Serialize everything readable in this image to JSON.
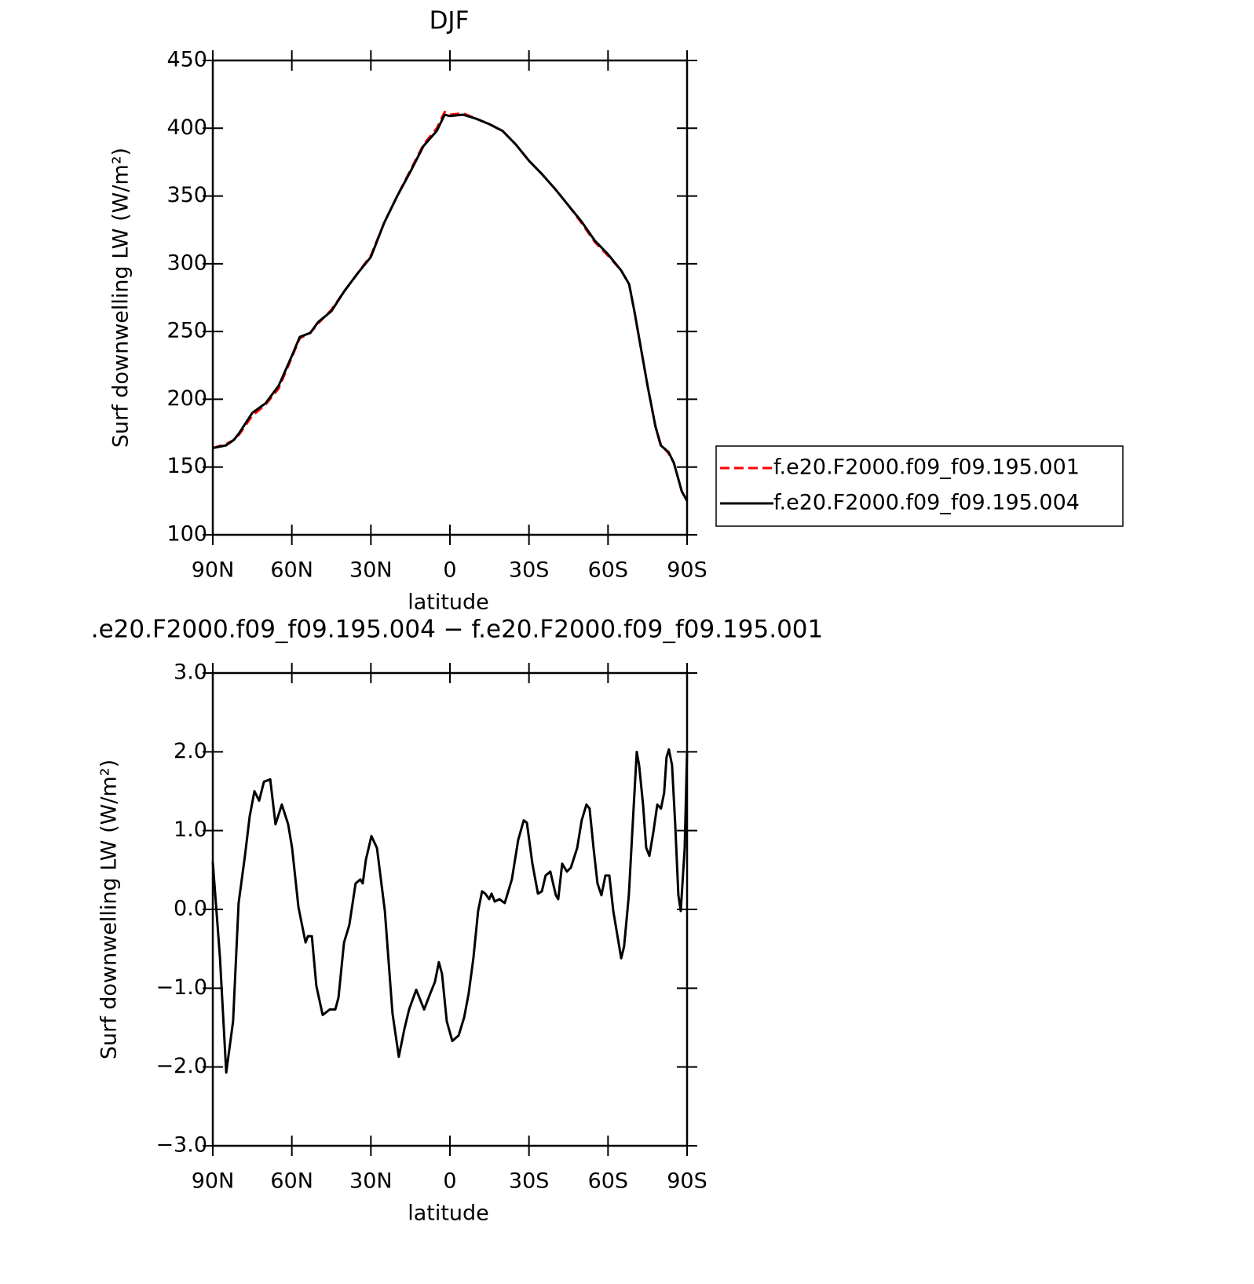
{
  "chart_data": [
    {
      "type": "line",
      "title": "DJF",
      "xlabel": "latitude",
      "ylabel": "Surf downwelling LW (W/m²)",
      "xlim": [
        90,
        -90
      ],
      "ylim": [
        100,
        450
      ],
      "xticks": [
        {
          "value": 90,
          "label": "90N"
        },
        {
          "value": 60,
          "label": "60N"
        },
        {
          "value": 30,
          "label": "30N"
        },
        0,
        {
          "value": -30,
          "label": "30S"
        },
        {
          "value": -60,
          "label": "60S"
        },
        {
          "value": -90,
          "label": "90S"
        }
      ],
      "yticks": [
        100,
        150,
        200,
        250,
        300,
        350,
        400,
        450
      ],
      "legend": "right",
      "x": [
        90,
        85,
        82,
        80,
        75,
        70,
        65,
        60,
        57,
        53,
        50,
        45,
        40,
        35,
        30,
        25,
        20,
        15,
        10,
        5,
        2,
        0,
        -5,
        -10,
        -15,
        -20,
        -25,
        -30,
        -35,
        -40,
        -45,
        -50,
        -55,
        -60,
        -65,
        -68,
        -70,
        -75,
        -78,
        -80,
        -83,
        -85,
        -88,
        -90
      ],
      "series": [
        {
          "name": "f.e20.F2000.f09_f09.195.001",
          "color": "#ff0000",
          "dash": true,
          "values": [
            164,
            167,
            170,
            174,
            188,
            196,
            208,
            231,
            245,
            249,
            256,
            266,
            280,
            293,
            306,
            330,
            350,
            369,
            388,
            400,
            412,
            410,
            411,
            407,
            403,
            398,
            388,
            376,
            366,
            355,
            343,
            330,
            316,
            306,
            295,
            285,
            265,
            210,
            180,
            167,
            160,
            153,
            132,
            125
          ]
        },
        {
          "name": "f.e20.F2000.f09_f09.195.004",
          "color": "#000000",
          "dash": false,
          "values": [
            164,
            166,
            170,
            175,
            190,
            197,
            210,
            232,
            246,
            249,
            257,
            265,
            280,
            293,
            305,
            330,
            350,
            368,
            387,
            398,
            410,
            409,
            410,
            407,
            403,
            398,
            388,
            376,
            366,
            355,
            343,
            331,
            317,
            307,
            295,
            285,
            265,
            210,
            180,
            166,
            161,
            153,
            132,
            125
          ]
        }
      ]
    },
    {
      "type": "line",
      "title": ".e20.F2000.f09_f09.195.004 − f.e20.F2000.f09_f09.195.001",
      "xlabel": "latitude",
      "ylabel": "Surf downwelling LW (W/m²)",
      "xlim": [
        90,
        -90
      ],
      "ylim": [
        -3,
        3
      ],
      "xticks": [
        {
          "value": 90,
          "label": "90N"
        },
        {
          "value": 60,
          "label": "60N"
        },
        {
          "value": 30,
          "label": "30N"
        },
        0,
        {
          "value": -30,
          "label": "30S"
        },
        {
          "value": -60,
          "label": "60S"
        },
        {
          "value": -90,
          "label": "90S"
        }
      ],
      "yticks": [
        {
          "value": -3,
          "label": "−3.0"
        },
        {
          "value": -2,
          "label": "−2.0"
        },
        {
          "value": -1,
          "label": "−1.0"
        },
        {
          "value": 0,
          "label": "0.0"
        },
        {
          "value": 1,
          "label": "1.0"
        },
        {
          "value": 2,
          "label": "2.0"
        },
        {
          "value": 3,
          "label": "3.0"
        }
      ],
      "x": [
        90,
        87.3,
        84.9,
        82.3,
        80.2,
        77.8,
        76,
        74.2,
        72.4,
        70.6,
        68.2,
        66.2,
        63.8,
        61.4,
        59.9,
        57.5,
        54.8,
        53.9,
        52.4,
        50.7,
        48.3,
        45.6,
        43.5,
        42.3,
        40.2,
        38.2,
        35.8,
        34,
        33.1,
        31.9,
        29.8,
        27.7,
        24.7,
        21.8,
        19.4,
        17.3,
        15.5,
        12.8,
        11.6,
        9.8,
        7.5,
        5.7,
        4.2,
        3,
        1.2,
        -0.9,
        -3.3,
        -5.4,
        -7.1,
        -8.9,
        -10.7,
        -12.2,
        -13.4,
        -14.9,
        -15.8,
        -17,
        -18.8,
        -20.8,
        -23.5,
        -25.9,
        -28,
        -29.2,
        -31.3,
        -33.4,
        -34.9,
        -36.3,
        -38.1,
        -40.2,
        -41.1,
        -42.6,
        -44.4,
        -45.9,
        -48.3,
        -50,
        -51.8,
        -53,
        -54.5,
        -56,
        -57.5,
        -59,
        -60.5,
        -62,
        -63.5,
        -65,
        -66.1,
        -67.9,
        -69.7,
        -70.9,
        -71.8,
        -73.3,
        -74.5,
        -75.7,
        -77.2,
        -78.7,
        -80.1,
        -81.3,
        -82.2,
        -83.1,
        -84.3,
        -85.5,
        -86.7,
        -87.6,
        -89.1,
        -90
      ],
      "series": [
        {
          "color": "#000000",
          "dash": false,
          "values": [
            0.6,
            -0.6,
            -2.07,
            -1.42,
            0.08,
            0.68,
            1.18,
            1.5,
            1.38,
            1.62,
            1.65,
            1.08,
            1.33,
            1.08,
            0.78,
            0.03,
            -0.42,
            -0.34,
            -0.34,
            -0.97,
            -1.34,
            -1.27,
            -1.27,
            -1.12,
            -0.42,
            -0.2,
            0.33,
            0.38,
            0.33,
            0.63,
            0.93,
            0.78,
            -0.02,
            -1.32,
            -1.87,
            -1.52,
            -1.27,
            -1.02,
            -1.12,
            -1.27,
            -1.07,
            -0.92,
            -0.67,
            -0.82,
            -1.42,
            -1.67,
            -1.6,
            -1.37,
            -1.07,
            -0.62,
            -0.02,
            0.23,
            0.2,
            0.13,
            0.2,
            0.1,
            0.13,
            0.08,
            0.38,
            0.88,
            1.13,
            1.1,
            0.58,
            0.2,
            0.23,
            0.43,
            0.48,
            0.18,
            0.13,
            0.58,
            0.48,
            0.53,
            0.78,
            1.13,
            1.33,
            1.28,
            0.78,
            0.33,
            0.18,
            0.43,
            0.43,
            -0.02,
            -0.32,
            -0.62,
            -0.47,
            0.18,
            1.28,
            2.0,
            1.83,
            1.33,
            0.78,
            0.68,
            0.98,
            1.33,
            1.28,
            1.48,
            1.93,
            2.03,
            1.83,
            1.08,
            0.18,
            -0.02,
            0.78,
            2.0
          ]
        }
      ]
    }
  ]
}
